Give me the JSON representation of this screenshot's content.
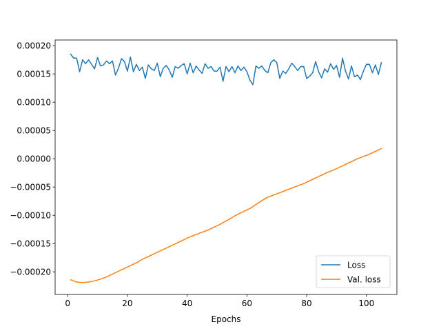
{
  "chart_data": {
    "type": "line",
    "title": "",
    "xlabel": "Epochs",
    "ylabel": "",
    "xlim": [
      -4.2,
      110.2
    ],
    "ylim": [
      -0.00024,
      0.00021
    ],
    "x_ticks": [
      0,
      20,
      40,
      60,
      80,
      100
    ],
    "x_tick_labels": [
      "0",
      "20",
      "40",
      "60",
      "80",
      "100"
    ],
    "y_ticks": [
      -0.0002,
      -0.00015,
      -0.0001,
      -5e-05,
      0.0,
      5e-05,
      0.0001,
      0.00015,
      0.0002
    ],
    "y_tick_labels": [
      "−0.00020",
      "−0.00015",
      "−0.00010",
      "−0.00005",
      "0.00000",
      "0.00005",
      "0.00010",
      "0.00015",
      "0.00020"
    ],
    "grid": false,
    "legend_position": "lower-right",
    "series": [
      {
        "name": "Loss",
        "color": "#1f77b4",
        "x": [
          1,
          2,
          3,
          4,
          5,
          6,
          7,
          8,
          9,
          10,
          11,
          12,
          13,
          14,
          15,
          16,
          17,
          18,
          19,
          20,
          21,
          22,
          23,
          24,
          25,
          26,
          27,
          28,
          29,
          30,
          31,
          32,
          33,
          34,
          35,
          36,
          37,
          38,
          39,
          40,
          41,
          42,
          43,
          44,
          45,
          46,
          47,
          48,
          49,
          50,
          51,
          52,
          53,
          54,
          55,
          56,
          57,
          58,
          59,
          60,
          61,
          62,
          63,
          64,
          65,
          66,
          67,
          68,
          69,
          70,
          71,
          72,
          73,
          74,
          75,
          76,
          77,
          78,
          79,
          80,
          81,
          82,
          83,
          84,
          85,
          86,
          87,
          88,
          89,
          90,
          91,
          92,
          93,
          94,
          95,
          96,
          97,
          98,
          99,
          100,
          101,
          102,
          103,
          104,
          105
        ],
        "y": [
          0.000185,
          0.000178,
          0.000178,
          0.000154,
          0.000175,
          0.000168,
          0.000175,
          0.000167,
          0.000159,
          0.000179,
          0.000164,
          0.000166,
          0.000173,
          0.000168,
          0.000173,
          0.000148,
          0.00016,
          0.000177,
          0.000172,
          0.000155,
          0.00018,
          0.000154,
          0.000167,
          0.000156,
          0.000162,
          0.000142,
          0.000166,
          0.000159,
          0.000156,
          0.000169,
          0.000145,
          0.00016,
          0.000165,
          0.000157,
          0.000144,
          0.000163,
          0.00016,
          0.000165,
          0.000168,
          0.00015,
          0.000169,
          0.000152,
          0.000164,
          0.000157,
          0.000151,
          0.000168,
          0.00016,
          0.000163,
          0.000155,
          0.000155,
          0.000162,
          0.000137,
          0.000163,
          0.000154,
          0.000163,
          0.000152,
          0.000164,
          0.000156,
          0.000162,
          0.000154,
          0.000139,
          0.000131,
          0.000164,
          0.00016,
          0.000164,
          0.000156,
          0.000152,
          0.00017,
          0.000175,
          0.00017,
          0.000142,
          0.000155,
          0.000151,
          0.000159,
          0.000169,
          0.000163,
          0.000156,
          0.000163,
          0.000163,
          0.000142,
          0.000146,
          0.000152,
          0.000172,
          0.000154,
          0.000143,
          0.000159,
          0.000153,
          0.000168,
          0.000158,
          0.000165,
          0.000144,
          0.000178,
          0.000155,
          0.000141,
          0.000164,
          0.000145,
          0.000148,
          0.00014,
          0.000155,
          0.000167,
          0.000167,
          0.000152,
          0.000166,
          0.000149,
          0.00017
        ]
      },
      {
        "name": "Val. loss",
        "color": "#ff7f0e",
        "x": [
          1,
          3,
          5,
          7,
          9,
          11,
          13,
          15,
          17,
          19,
          21,
          23,
          25,
          27,
          29,
          31,
          33,
          35,
          37,
          39,
          41,
          43,
          45,
          47,
          49,
          51,
          53,
          55,
          57,
          59,
          61,
          63,
          65,
          67,
          69,
          71,
          73,
          75,
          77,
          79,
          81,
          83,
          85,
          87,
          89,
          91,
          93,
          95,
          97,
          99,
          101,
          103,
          105
        ],
        "y": [
          -0.000214,
          -0.000218,
          -0.000219,
          -0.000218,
          -0.000216,
          -0.000213,
          -0.000209,
          -0.000204,
          -0.000199,
          -0.000194,
          -0.000189,
          -0.000184,
          -0.000178,
          -0.000173,
          -0.000168,
          -0.000163,
          -0.000158,
          -0.000153,
          -0.000148,
          -0.000143,
          -0.000138,
          -0.000134,
          -0.00013,
          -0.000126,
          -0.000121,
          -0.000116,
          -0.00011,
          -0.000104,
          -9.8e-05,
          -9.3e-05,
          -8.8e-05,
          -8.1e-05,
          -7.4e-05,
          -6.8e-05,
          -6.4e-05,
          -6e-05,
          -5.6e-05,
          -5.2e-05,
          -4.8e-05,
          -4.4e-05,
          -3.9e-05,
          -3.4e-05,
          -2.9e-05,
          -2.4e-05,
          -2e-05,
          -1.5e-05,
          -1e-05,
          -5e-06,
          0.0,
          4e-06,
          8e-06,
          1.3e-05,
          1.8e-05
        ]
      }
    ]
  }
}
